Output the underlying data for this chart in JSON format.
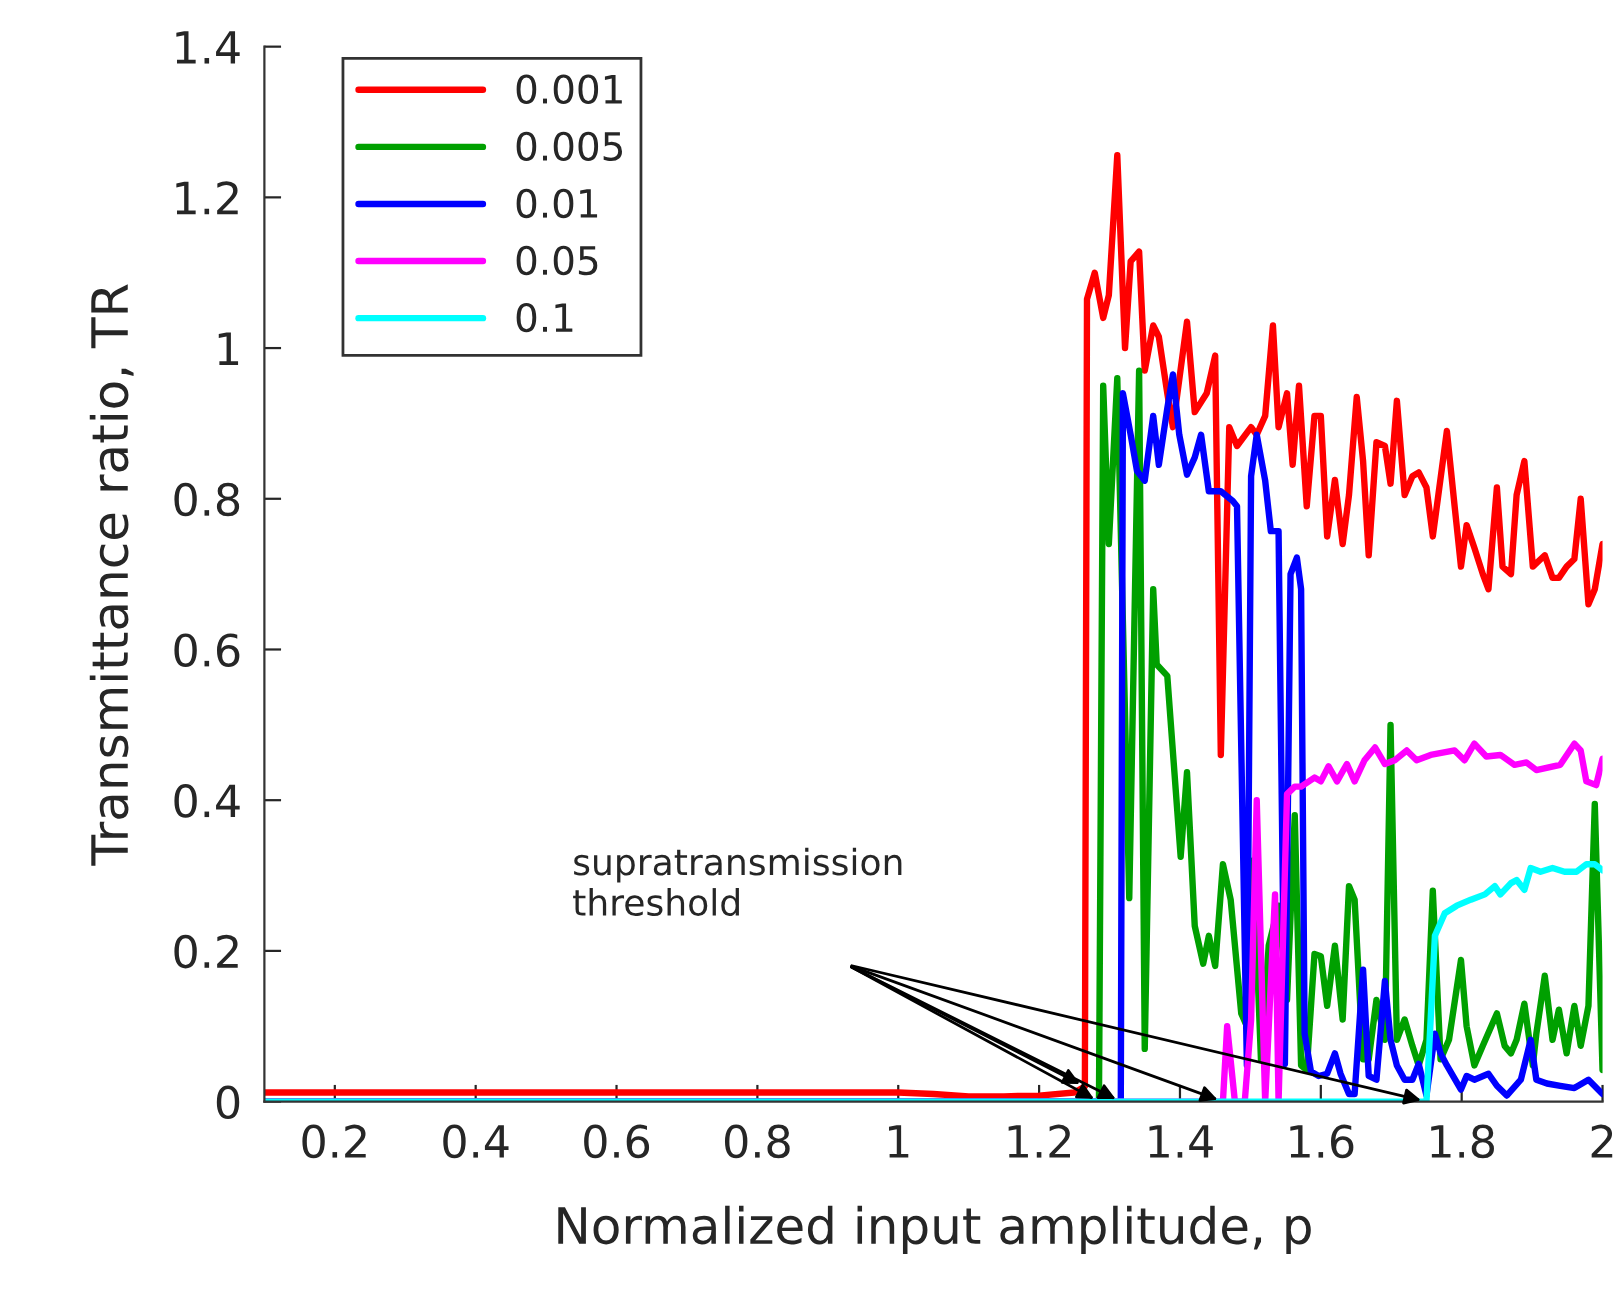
{
  "chart_data": {
    "type": "line",
    "xlabel": "Normalized input amplitude, p",
    "ylabel": "Transmittance ratio, TR",
    "xlim": [
      0.1,
      2
    ],
    "ylim": [
      0,
      1.4
    ],
    "xticks": [
      0.2,
      0.4,
      0.6,
      0.8,
      1,
      1.2,
      1.4,
      1.6,
      1.8,
      2
    ],
    "yticks": [
      0,
      0.2,
      0.4,
      0.6,
      0.8,
      1,
      1.2,
      1.4
    ],
    "grid": false,
    "legend": "top left",
    "marker": "none",
    "line_style": "solid",
    "annotations": [
      "supratransmission\nthreshold"
    ],
    "series": [
      {
        "name": "0.001",
        "color": "#ff0000",
        "x": [
          0.1,
          0.3,
          0.5,
          0.7,
          0.9,
          1.0,
          1.05,
          1.1,
          1.15,
          1.2,
          1.25,
          1.265,
          1.268,
          1.279,
          1.291,
          1.299,
          1.311,
          1.322,
          1.33,
          1.342,
          1.35,
          1.362,
          1.37,
          1.382,
          1.39,
          1.41,
          1.421,
          1.438,
          1.45,
          1.458,
          1.47,
          1.481,
          1.501,
          1.509,
          1.521,
          1.532,
          1.54,
          1.552,
          1.56,
          1.569,
          1.58,
          1.591,
          1.6,
          1.609,
          1.62,
          1.631,
          1.64,
          1.651,
          1.66,
          1.668,
          1.679,
          1.691,
          1.699,
          1.708,
          1.719,
          1.73,
          1.739,
          1.75,
          1.759,
          1.779,
          1.79,
          1.799,
          1.807,
          1.818,
          1.83,
          1.838,
          1.85,
          1.858,
          1.87,
          1.878,
          1.889,
          1.901,
          1.918,
          1.929,
          1.938,
          1.949,
          1.96,
          1.969,
          1.98,
          1.989,
          2.0
        ],
        "values": [
          0.012,
          0.012,
          0.012,
          0.012,
          0.012,
          0.012,
          0.01,
          0.007,
          0.007,
          0.008,
          0.012,
          0.02,
          1.065,
          1.1,
          1.04,
          1.07,
          1.256,
          1.0,
          1.115,
          1.128,
          0.97,
          1.03,
          1.015,
          0.94,
          0.895,
          1.035,
          0.915,
          0.94,
          0.99,
          0.46,
          0.895,
          0.87,
          0.895,
          0.885,
          0.91,
          1.03,
          0.895,
          0.94,
          0.845,
          0.95,
          0.79,
          0.91,
          0.91,
          0.75,
          0.825,
          0.74,
          0.805,
          0.935,
          0.85,
          0.725,
          0.875,
          0.87,
          0.82,
          0.93,
          0.805,
          0.83,
          0.835,
          0.815,
          0.75,
          0.89,
          0.79,
          0.71,
          0.765,
          0.735,
          0.7,
          0.68,
          0.815,
          0.71,
          0.7,
          0.805,
          0.85,
          0.71,
          0.725,
          0.695,
          0.695,
          0.71,
          0.72,
          0.8,
          0.66,
          0.68,
          0.74
        ]
      },
      {
        "name": "0.005",
        "color": "#00a000",
        "x": [
          0.1,
          1.285,
          1.291,
          1.299,
          1.311,
          1.328,
          1.342,
          1.35,
          1.362,
          1.367,
          1.382,
          1.401,
          1.41,
          1.421,
          1.433,
          1.441,
          1.45,
          1.461,
          1.472,
          1.487,
          1.495,
          1.504,
          1.515,
          1.526,
          1.54,
          1.552,
          1.563,
          1.572,
          1.58,
          1.591,
          1.6,
          1.609,
          1.62,
          1.631,
          1.64,
          1.648,
          1.66,
          1.668,
          1.679,
          1.691,
          1.699,
          1.708,
          1.719,
          1.73,
          1.739,
          1.75,
          1.759,
          1.77,
          1.782,
          1.799,
          1.807,
          1.818,
          1.83,
          1.85,
          1.861,
          1.87,
          1.878,
          1.889,
          1.901,
          1.906,
          1.918,
          1.929,
          1.938,
          1.949,
          1.96,
          1.969,
          1.98,
          1.989,
          2.0
        ],
        "values": [
          0,
          0,
          0.95,
          0.74,
          0.96,
          0.27,
          0.97,
          0.07,
          0.68,
          0.58,
          0.565,
          0.325,
          0.437,
          0.233,
          0.183,
          0.22,
          0.18,
          0.315,
          0.268,
          0.117,
          0.1,
          0.32,
          0.056,
          0.207,
          0.26,
          0.135,
          0.38,
          0.048,
          0.042,
          0.196,
          0.193,
          0.127,
          0.207,
          0.109,
          0.286,
          0.268,
          0.056,
          0.056,
          0.135,
          0.082,
          0.5,
          0.082,
          0.109,
          0.074,
          0.048,
          0.082,
          0.28,
          0.056,
          0.082,
          0.188,
          0.1,
          0.048,
          0.074,
          0.117,
          0.074,
          0.064,
          0.082,
          0.13,
          0.048,
          0.09,
          0.167,
          0.082,
          0.122,
          0.064,
          0.127,
          0.074,
          0.127,
          0.395,
          0.042
        ]
      },
      {
        "name": "0.01",
        "color": "#0000ff",
        "x": [
          0.1,
          1.316,
          1.319,
          1.33,
          1.339,
          1.35,
          1.362,
          1.37,
          1.382,
          1.39,
          1.399,
          1.41,
          1.421,
          1.43,
          1.441,
          1.458,
          1.475,
          1.481,
          1.495,
          1.501,
          1.509,
          1.521,
          1.529,
          1.54,
          1.549,
          1.557,
          1.566,
          1.572,
          1.577,
          1.586,
          1.597,
          1.609,
          1.62,
          1.628,
          1.64,
          1.648,
          1.66,
          1.668,
          1.679,
          1.691,
          1.699,
          1.708,
          1.719,
          1.73,
          1.739,
          1.75,
          1.762,
          1.77,
          1.779,
          1.799,
          1.807,
          1.818,
          1.838,
          1.85,
          1.864,
          1.884,
          1.898,
          1.906,
          1.921,
          1.94,
          1.96,
          1.98,
          2.0
        ],
        "values": [
          0,
          0,
          0.94,
          0.885,
          0.837,
          0.824,
          0.91,
          0.845,
          0.92,
          0.965,
          0.885,
          0.832,
          0.855,
          0.885,
          0.81,
          0.81,
          0.797,
          0.79,
          0.048,
          0.83,
          0.885,
          0.824,
          0.757,
          0.757,
          0.05,
          0.7,
          0.722,
          0.68,
          0.09,
          0.04,
          0.034,
          0.037,
          0.064,
          0.037,
          0.01,
          0.01,
          0.175,
          0.034,
          0.029,
          0.16,
          0.082,
          0.048,
          0.029,
          0.029,
          0.05,
          0.008,
          0.09,
          0.064,
          0.048,
          0.016,
          0.034,
          0.029,
          0.037,
          0.021,
          0.008,
          0.029,
          0.082,
          0.029,
          0.024,
          0.021,
          0.018,
          0.029,
          0.01
        ]
      },
      {
        "name": "0.05",
        "color": "#ff00ff",
        "x": [
          0.1,
          1.461,
          1.467,
          1.478,
          1.492,
          1.501,
          1.509,
          1.521,
          1.535,
          1.54,
          1.552,
          1.563,
          1.572,
          1.591,
          1.6,
          1.611,
          1.623,
          1.637,
          1.648,
          1.662,
          1.677,
          1.691,
          1.705,
          1.722,
          1.736,
          1.756,
          1.79,
          1.804,
          1.818,
          1.835,
          1.855,
          1.875,
          1.892,
          1.906,
          1.94,
          1.96,
          1.969,
          1.977,
          1.991,
          2.0
        ],
        "values": [
          0,
          0,
          0.1,
          0,
          0,
          0.108,
          0.4,
          0,
          0.275,
          0,
          0.408,
          0.418,
          0.418,
          0.43,
          0.425,
          0.445,
          0.425,
          0.448,
          0.425,
          0.453,
          0.47,
          0.448,
          0.453,
          0.466,
          0.453,
          0.46,
          0.466,
          0.453,
          0.475,
          0.458,
          0.46,
          0.447,
          0.45,
          0.44,
          0.447,
          0.475,
          0.466,
          0.425,
          0.42,
          0.455
        ]
      },
      {
        "name": "0.1",
        "color": "#00ffff",
        "x": [
          0.1,
          1.75,
          1.762,
          1.776,
          1.793,
          1.813,
          1.833,
          1.847,
          1.855,
          1.87,
          1.878,
          1.889,
          1.898,
          1.912,
          1.929,
          1.946,
          1.963,
          1.977,
          1.989,
          2.0
        ],
        "values": [
          0,
          0,
          0.22,
          0.25,
          0.26,
          0.268,
          0.275,
          0.286,
          0.275,
          0.29,
          0.294,
          0.281,
          0.31,
          0.305,
          0.31,
          0.305,
          0.305,
          0.315,
          0.315,
          0.307
        ]
      }
    ]
  }
}
